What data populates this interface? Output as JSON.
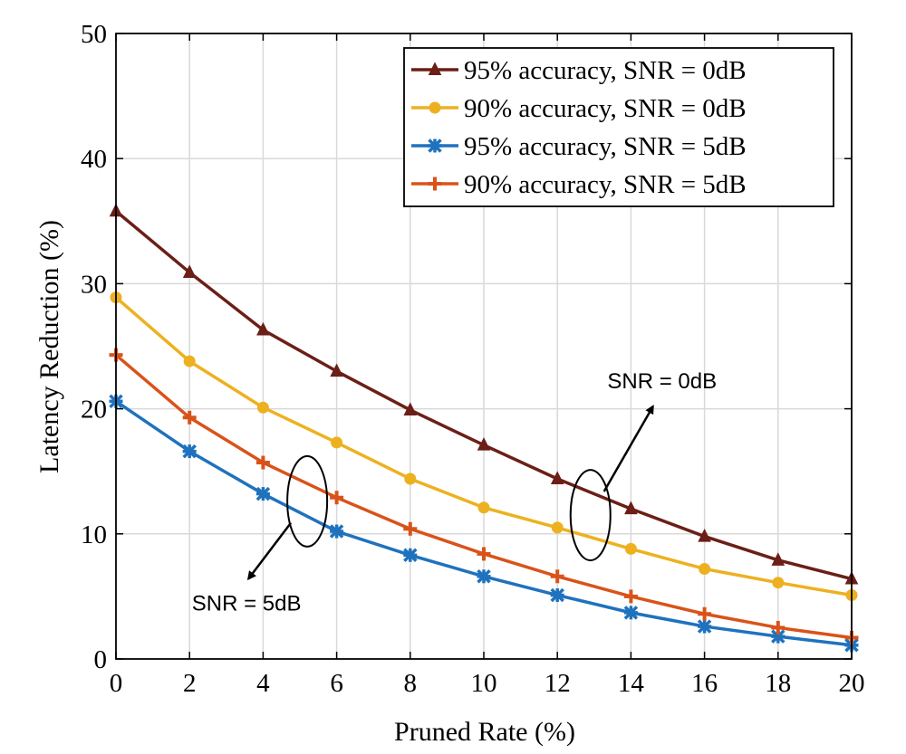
{
  "chart_data": {
    "type": "line",
    "title": "",
    "xlabel": "Pruned Rate (%)",
    "ylabel": "Latency Reduction (%)",
    "xlim": [
      0,
      20
    ],
    "ylim": [
      0,
      50
    ],
    "xticks": [
      0,
      2,
      4,
      6,
      8,
      10,
      12,
      14,
      16,
      18,
      20
    ],
    "yticks": [
      0,
      10,
      20,
      30,
      40,
      50
    ],
    "x_tick_labels": [
      "0",
      "2",
      "4",
      "6",
      "8",
      "10",
      "12",
      "14",
      "16",
      "18",
      "20"
    ],
    "y_tick_labels": [
      "0",
      "10",
      "20",
      "30",
      "40",
      "50"
    ],
    "grid": true,
    "legend_position": "top-right",
    "x": [
      0,
      2,
      4,
      6,
      8,
      10,
      12,
      14,
      16,
      18,
      20
    ],
    "series": [
      {
        "name": "95% accuracy, SNR = 0dB",
        "marker": "triangle",
        "color": "#6b1f16",
        "values": [
          35.8,
          30.9,
          26.3,
          23.0,
          19.9,
          17.1,
          14.4,
          12.0,
          9.8,
          7.9,
          6.4
        ]
      },
      {
        "name": "90% accuracy, SNR = 0dB",
        "marker": "circle",
        "color": "#edb120",
        "values": [
          28.9,
          23.8,
          20.1,
          17.3,
          14.4,
          12.1,
          10.5,
          8.8,
          7.2,
          6.1,
          5.1
        ]
      },
      {
        "name": "95% accuracy, SNR = 5dB",
        "marker": "asterisk",
        "color": "#1f72bd",
        "values": [
          20.6,
          16.6,
          13.2,
          10.2,
          8.3,
          6.6,
          5.1,
          3.7,
          2.6,
          1.8,
          1.1
        ]
      },
      {
        "name": "90% accuracy, SNR = 5dB",
        "marker": "plus",
        "color": "#d95319",
        "values": [
          24.3,
          19.3,
          15.7,
          12.9,
          10.4,
          8.4,
          6.6,
          5.0,
          3.6,
          2.5,
          1.7
        ]
      }
    ],
    "annotations": [
      {
        "text": "SNR = 0dB",
        "ellipse_center": [
          12.9,
          11.5
        ],
        "arrow_from": [
          12.9,
          11.5
        ],
        "arrow_to": [
          14.6,
          20.2
        ]
      },
      {
        "text": "SNR = 5dB",
        "ellipse_center": [
          5.2,
          12.6
        ],
        "arrow_from": [
          5.2,
          12.6
        ],
        "arrow_to": [
          3.6,
          6.4
        ]
      }
    ]
  }
}
